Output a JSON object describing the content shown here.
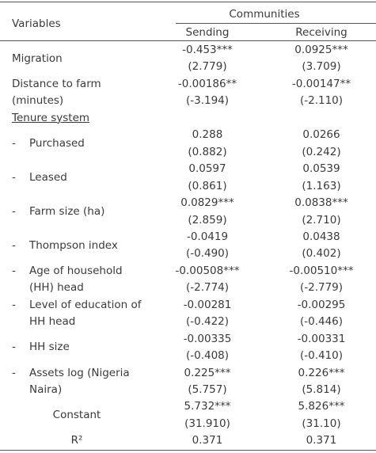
{
  "header": {
    "variables": "Variables",
    "group": "Communities",
    "columns": [
      "Sending",
      "Receiving"
    ]
  },
  "rows": [
    {
      "label": [
        "Migration"
      ],
      "values": [
        [
          "-0.453***",
          "(2.779)"
        ],
        [
          "0.0925***",
          "(3.709)"
        ]
      ]
    },
    {
      "label": [
        "Distance to farm",
        "(minutes)"
      ],
      "values": [
        [
          "-0.00186**",
          "(-3.194)"
        ],
        [
          "-0.00147**",
          "(-2.110)"
        ]
      ]
    },
    {
      "label": [
        "Tenure system"
      ]
    },
    {
      "marker": "-",
      "label": [
        "Purchased"
      ],
      "values": [
        [
          "0.288",
          "(0.882)"
        ],
        [
          "0.0266",
          "(0.242)"
        ]
      ]
    },
    {
      "marker": "-",
      "label": [
        "Leased"
      ],
      "values": [
        [
          "0.0597",
          "(0.861)"
        ],
        [
          "0.0539",
          "(1.163)"
        ]
      ]
    },
    {
      "marker": "-",
      "label": [
        "Farm size (ha)"
      ],
      "values": [
        [
          "0.0829***",
          "(2.859)"
        ],
        [
          "0.0838***",
          "(2.710)"
        ]
      ]
    },
    {
      "marker": "-",
      "label": [
        "Thompson index"
      ],
      "values": [
        [
          "-0.0419",
          "(-0.490)"
        ],
        [
          "0.0438",
          "(0.402)"
        ]
      ]
    },
    {
      "marker": "-",
      "label": [
        "Age of household",
        "(HH) head"
      ],
      "values": [
        [
          "-0.00508***",
          "(-2.774)"
        ],
        [
          "-0.00510***",
          "(-2.779)"
        ]
      ]
    },
    {
      "marker": "-",
      "label": [
        "Level of education of",
        "HH head"
      ],
      "values": [
        [
          "-0.00281",
          "(-0.422)"
        ],
        [
          "-0.00295",
          "(-0.446)"
        ]
      ]
    },
    {
      "marker": "-",
      "label": [
        "HH size"
      ],
      "values": [
        [
          "-0.00335",
          "(-0.408)"
        ],
        [
          "-0.00331",
          "(-0.410)"
        ]
      ]
    },
    {
      "marker": "-",
      "label": [
        "Assets log (Nigeria",
        "Naira)"
      ],
      "values": [
        [
          "0.225***",
          "(5.757)"
        ],
        [
          "0.226***",
          "(5.814)"
        ]
      ]
    }
  ],
  "footer": [
    {
      "label": [
        "Constant"
      ],
      "values": [
        [
          "5.732***",
          "(31.910)"
        ],
        [
          "5.826***",
          "(31.10)"
        ]
      ]
    },
    {
      "label": [
        "R²"
      ],
      "values": [
        [
          "0.371"
        ],
        [
          "0.371"
        ]
      ]
    }
  ]
}
